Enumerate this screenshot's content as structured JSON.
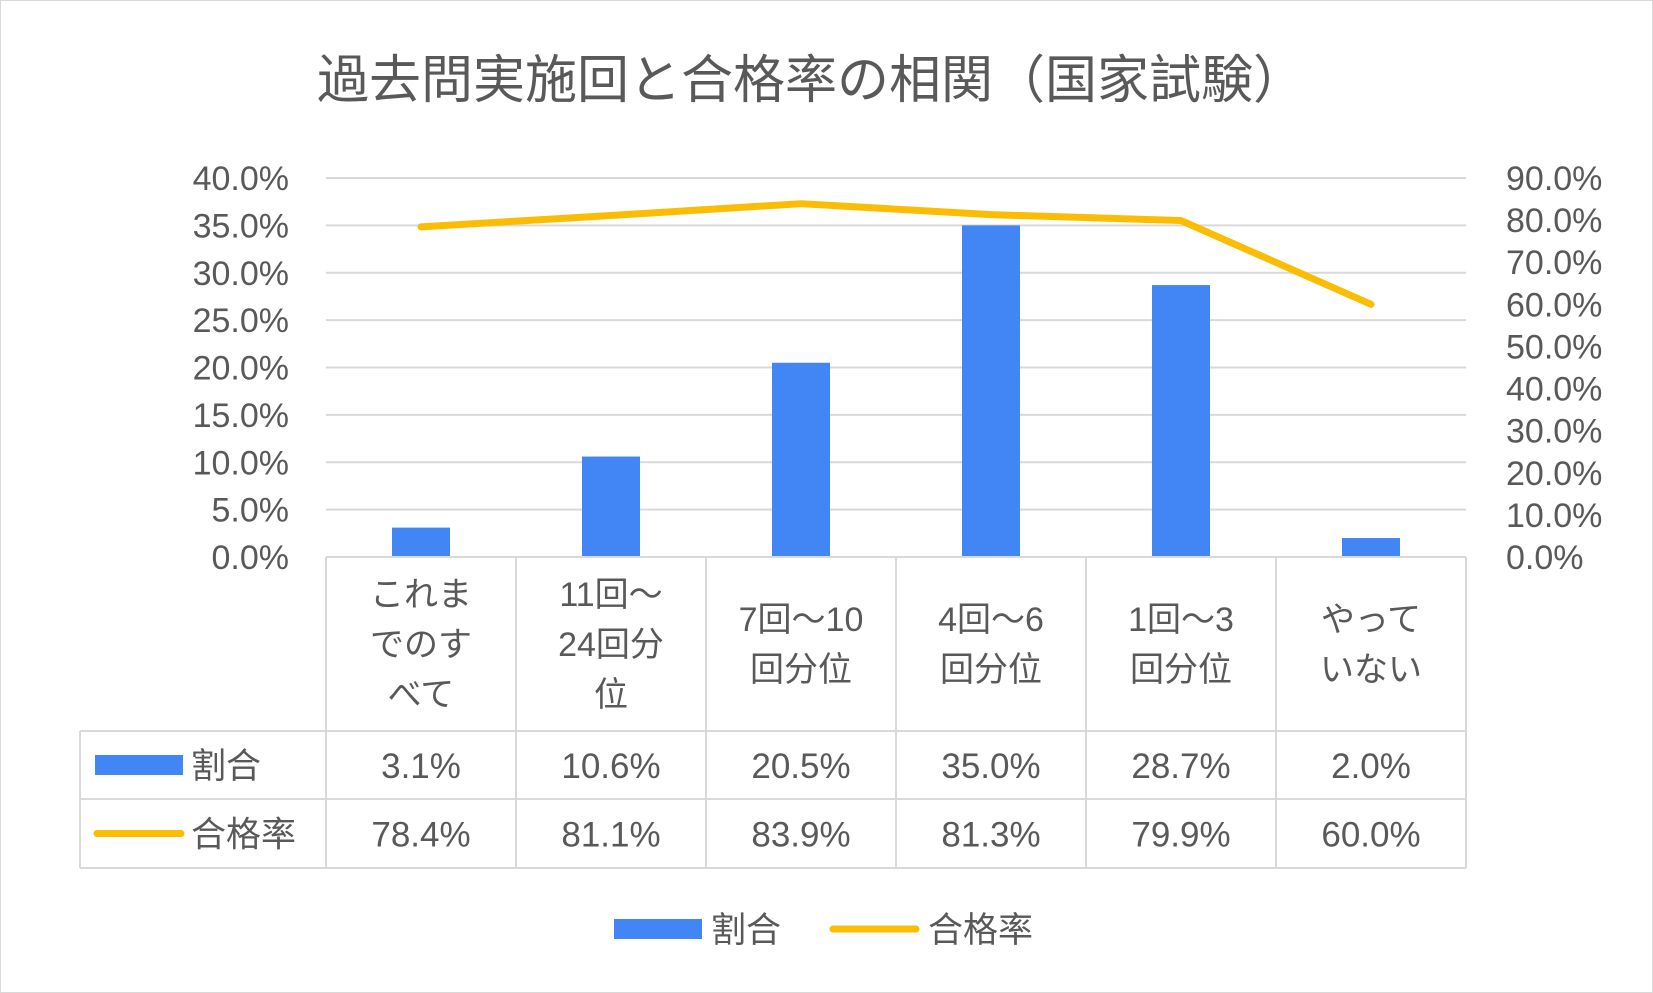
{
  "chart_data": {
    "type": "bar",
    "title": "過去問実施回と合格率の相関（国家試験）",
    "categories": [
      [
        "これま",
        "でのす",
        "べて"
      ],
      [
        "11回～",
        "24回分",
        "位"
      ],
      [
        "7回～10",
        "回分位"
      ],
      [
        "4回～6",
        "回分位"
      ],
      [
        "1回～3",
        "回分位"
      ],
      [
        "やって",
        "いない"
      ]
    ],
    "series": [
      {
        "name": "割合",
        "type": "bar",
        "axis": "left",
        "color": "#4285F4",
        "values": [
          3.1,
          10.6,
          20.5,
          35.0,
          28.7,
          2.0
        ],
        "labels": [
          "3.1%",
          "10.6%",
          "20.5%",
          "35.0%",
          "28.7%",
          "2.0%"
        ]
      },
      {
        "name": "合格率",
        "type": "line",
        "axis": "right",
        "color": "#FBBC04",
        "values": [
          78.4,
          81.1,
          83.9,
          81.3,
          79.9,
          60.0
        ],
        "labels": [
          "78.4%",
          "81.1%",
          "83.9%",
          "81.3%",
          "79.9%",
          "60.0%"
        ]
      }
    ],
    "y_left": {
      "min": 0,
      "max": 40,
      "step": 5,
      "ticks": [
        "0.0%",
        "5.0%",
        "10.0%",
        "15.0%",
        "20.0%",
        "25.0%",
        "30.0%",
        "35.0%",
        "40.0%"
      ]
    },
    "y_right": {
      "min": 0,
      "max": 90,
      "step": 10,
      "ticks": [
        "0.0%",
        "10.0%",
        "20.0%",
        "30.0%",
        "40.0%",
        "50.0%",
        "60.0%",
        "70.0%",
        "80.0%",
        "90.0%"
      ]
    },
    "grid": true,
    "data_table": true,
    "legend_position": "bottom"
  }
}
